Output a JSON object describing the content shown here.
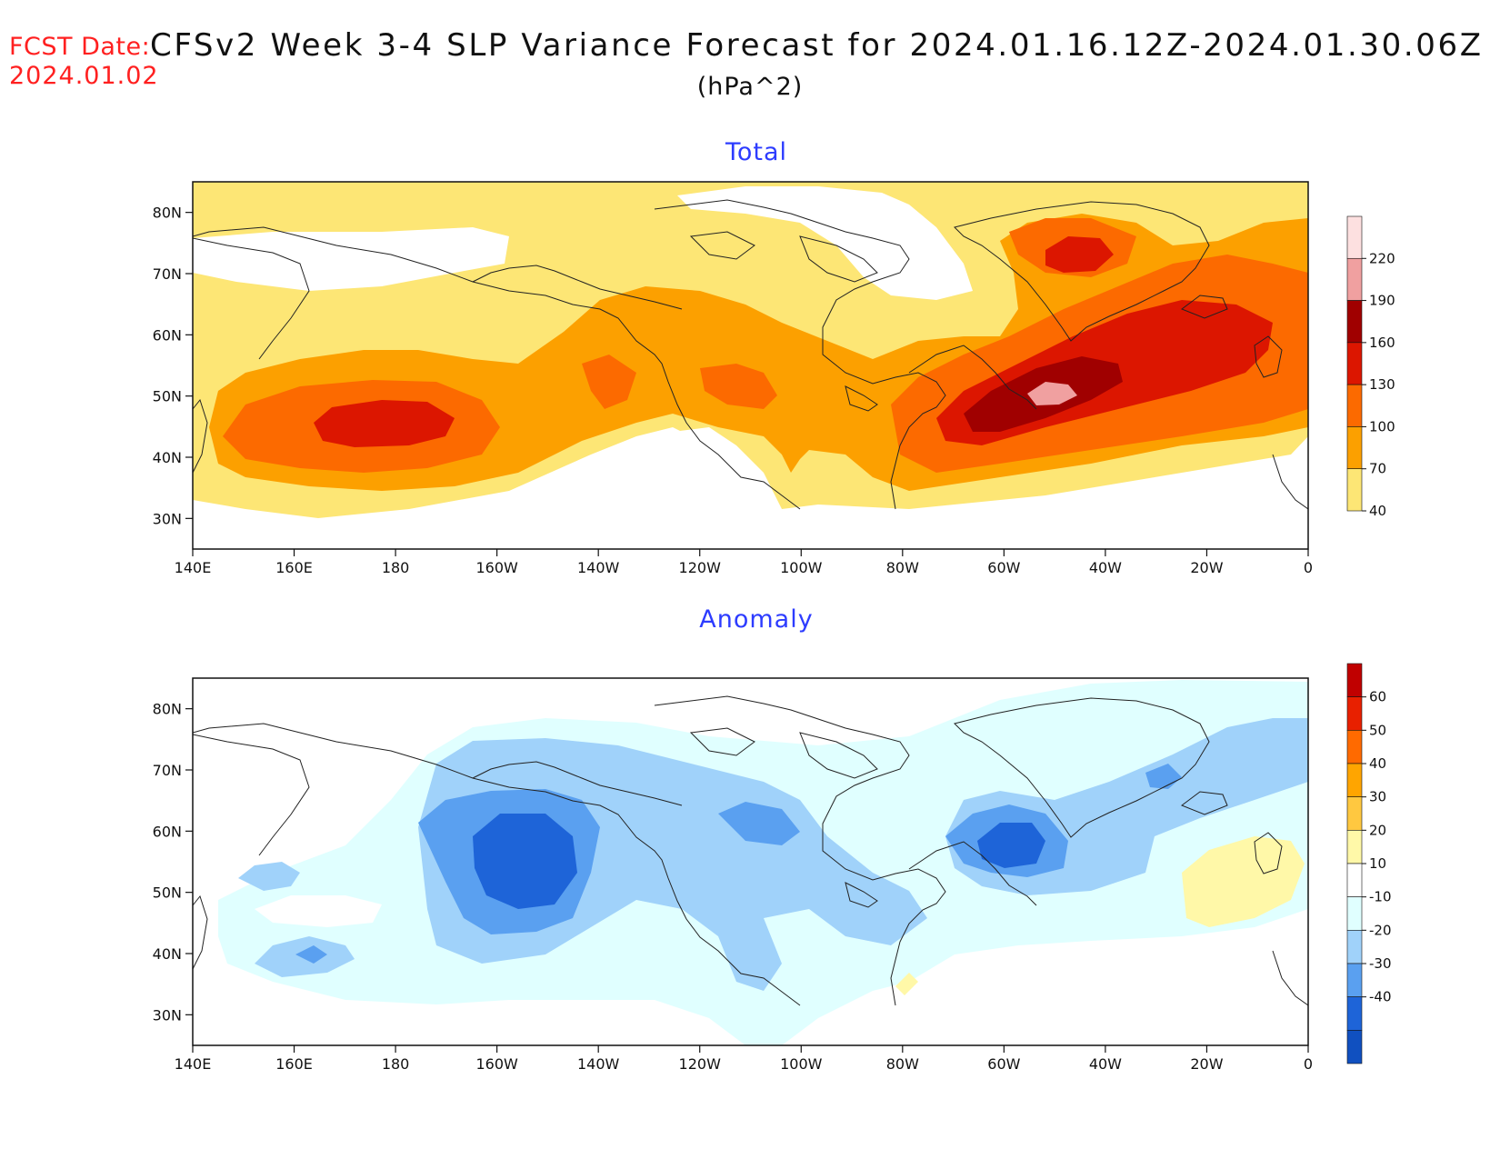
{
  "header": {
    "fcst_label": "FCST Date:",
    "fcst_date": "2024.01.02",
    "title": "CFSv2 Week 3-4 SLP Variance Forecast for 2024.01.16.12Z-2024.01.30.06Z",
    "units": "(hPa^2)"
  },
  "map": {
    "lon_ticks": [
      "140E",
      "160E",
      "180",
      "160W",
      "140W",
      "120W",
      "100W",
      "80W",
      "60W",
      "40W",
      "20W",
      "0"
    ],
    "lat_ticks": [
      "80N",
      "70N",
      "60N",
      "50N",
      "40N",
      "30N"
    ],
    "lon_range": [
      140,
      360
    ],
    "lat_range": [
      25,
      85
    ]
  },
  "panels": [
    {
      "id": "total",
      "title": "Total",
      "colorbar": {
        "levels": [
          "40",
          "70",
          "100",
          "130",
          "160",
          "190",
          "220"
        ],
        "colors": [
          "#fde675",
          "#fca000",
          "#fc6a00",
          "#dc1600",
          "#a00000",
          "#f0a0a0",
          "#fde0e0"
        ]
      }
    },
    {
      "id": "anomaly",
      "title": "Anomaly",
      "colorbar": {
        "levels": [
          "60",
          "50",
          "40",
          "30",
          "20",
          "10",
          "-10",
          "-20",
          "-30",
          "-40"
        ],
        "colors": [
          "#c00000",
          "#e82000",
          "#ff6a00",
          "#ffa500",
          "#ffc840",
          "#fff8a8",
          "#ffffff",
          "#e0ffff",
          "#a0d2fa",
          "#5aa0f0",
          "#1e64d8",
          "#1050c0"
        ]
      }
    }
  ]
}
